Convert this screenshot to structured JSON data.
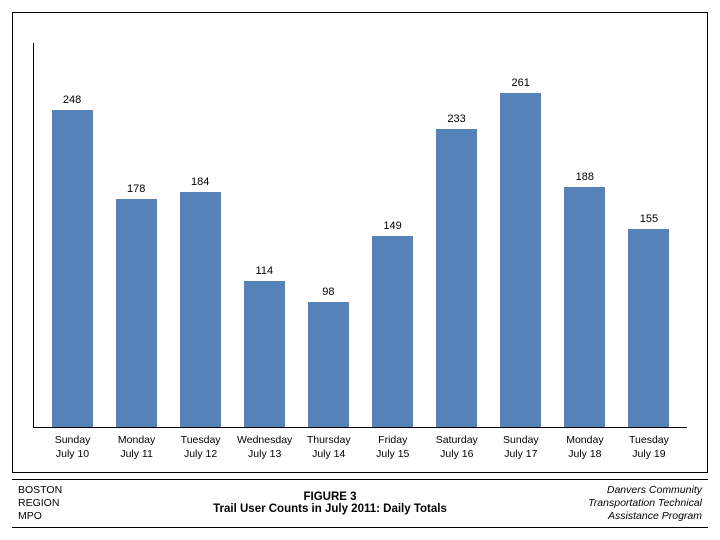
{
  "chart": {
    "type": "bar",
    "y_max": 300,
    "bar_color": "#5582b8",
    "background_color": "#ffffff",
    "axis_color": "#000000",
    "value_fontsize": 11,
    "label_fontsize": 10.5,
    "bars": [
      {
        "value": 248,
        "day": "Sunday",
        "date": "July 10"
      },
      {
        "value": 178,
        "day": "Monday",
        "date": "July 11"
      },
      {
        "value": 184,
        "day": "Tuesday",
        "date": "July 12"
      },
      {
        "value": 114,
        "day": "Wednesday",
        "date": "July 13"
      },
      {
        "value": 98,
        "day": "Thursday",
        "date": "July 14"
      },
      {
        "value": 149,
        "day": "Friday",
        "date": "July 15"
      },
      {
        "value": 233,
        "day": "Saturday",
        "date": "July 16"
      },
      {
        "value": 261,
        "day": "Sunday",
        "date": "July 17"
      },
      {
        "value": 188,
        "day": "Monday",
        "date": "July 18"
      },
      {
        "value": 155,
        "day": "Tuesday",
        "date": "July 19"
      }
    ]
  },
  "caption": {
    "left_line1": "BOSTON",
    "left_line2": "REGION",
    "left_line3": "MPO",
    "figure_number": "FIGURE 3",
    "title": "Trail User Counts in July 2011: Daily Totals",
    "right_line1": "Danvers Community",
    "right_line2": "Transportation Technical",
    "right_line3": "Assistance Program"
  }
}
